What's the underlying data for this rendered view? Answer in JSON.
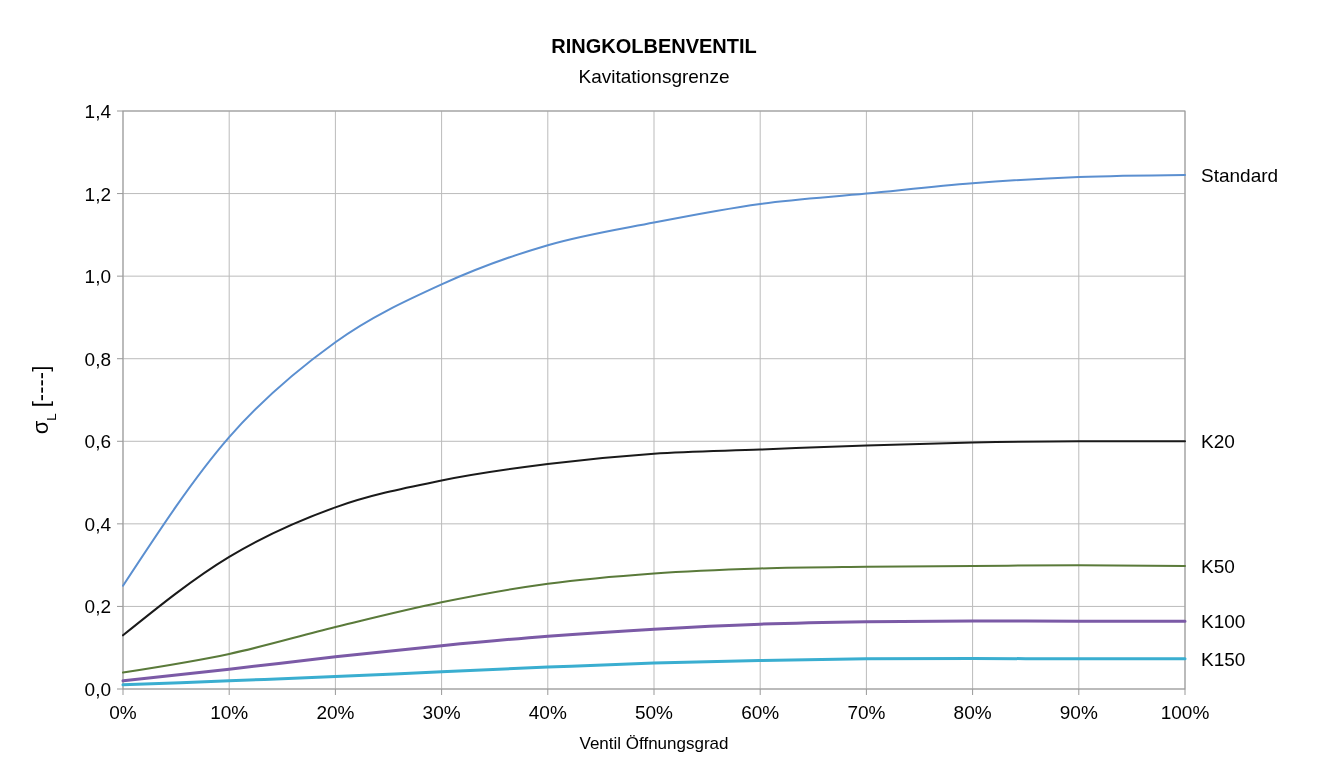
{
  "chart_data": {
    "type": "line",
    "title": "RINGKOLBENVENTIL",
    "subtitle": "Kavitationsgrenze",
    "xlabel": "Ventil Öffnungsgrad",
    "ylabel": "σ$_{L}$ [----]",
    "x": [
      0,
      10,
      20,
      30,
      40,
      50,
      60,
      70,
      80,
      90,
      100
    ],
    "xlim": [
      0,
      100
    ],
    "xticks": [
      {
        "value": 0,
        "label": "0%"
      },
      {
        "value": 10,
        "label": "10%"
      },
      {
        "value": 20,
        "label": "20%"
      },
      {
        "value": 30,
        "label": "30%"
      },
      {
        "value": 40,
        "label": "40%"
      },
      {
        "value": 50,
        "label": "50%"
      },
      {
        "value": 60,
        "label": "60%"
      },
      {
        "value": 70,
        "label": "70%"
      },
      {
        "value": 80,
        "label": "80%"
      },
      {
        "value": 90,
        "label": "90%"
      },
      {
        "value": 100,
        "label": "100%"
      }
    ],
    "ylim": [
      0,
      1.4
    ],
    "yticks": [
      {
        "value": 0,
        "label": "0,0"
      },
      {
        "value": 0.2,
        "label": "0,2"
      },
      {
        "value": 0.4,
        "label": "0,4"
      },
      {
        "value": 0.6,
        "label": "0,6"
      },
      {
        "value": 0.8,
        "label": "0,8"
      },
      {
        "value": 1.0,
        "label": "1,0"
      },
      {
        "value": 1.2,
        "label": "1,2"
      },
      {
        "value": 1.4,
        "label": "1,4"
      }
    ],
    "grid": true,
    "marker": "none",
    "line_style": "solid",
    "series": [
      {
        "name": "Standard",
        "color": "#5b8fd0",
        "values": [
          0.25,
          0.61,
          0.84,
          0.98,
          1.075,
          1.13,
          1.175,
          1.2,
          1.225,
          1.24,
          1.245
        ]
      },
      {
        "name": "K20",
        "color": "#1a1a1a",
        "values": [
          0.13,
          0.32,
          0.44,
          0.505,
          0.545,
          0.57,
          0.58,
          0.59,
          0.597,
          0.6,
          0.6
        ]
      },
      {
        "name": "K50",
        "color": "#5a7a3a",
        "values": [
          0.04,
          0.085,
          0.15,
          0.21,
          0.255,
          0.28,
          0.292,
          0.296,
          0.298,
          0.3,
          0.298
        ]
      },
      {
        "name": "K100",
        "color": "#7b5aa6",
        "values": [
          0.02,
          0.048,
          0.078,
          0.105,
          0.128,
          0.145,
          0.157,
          0.163,
          0.165,
          0.164,
          0.164
        ]
      },
      {
        "name": "K150",
        "color": "#3aaed0",
        "values": [
          0.01,
          0.02,
          0.03,
          0.042,
          0.053,
          0.063,
          0.069,
          0.073,
          0.074,
          0.073,
          0.073
        ]
      }
    ]
  }
}
